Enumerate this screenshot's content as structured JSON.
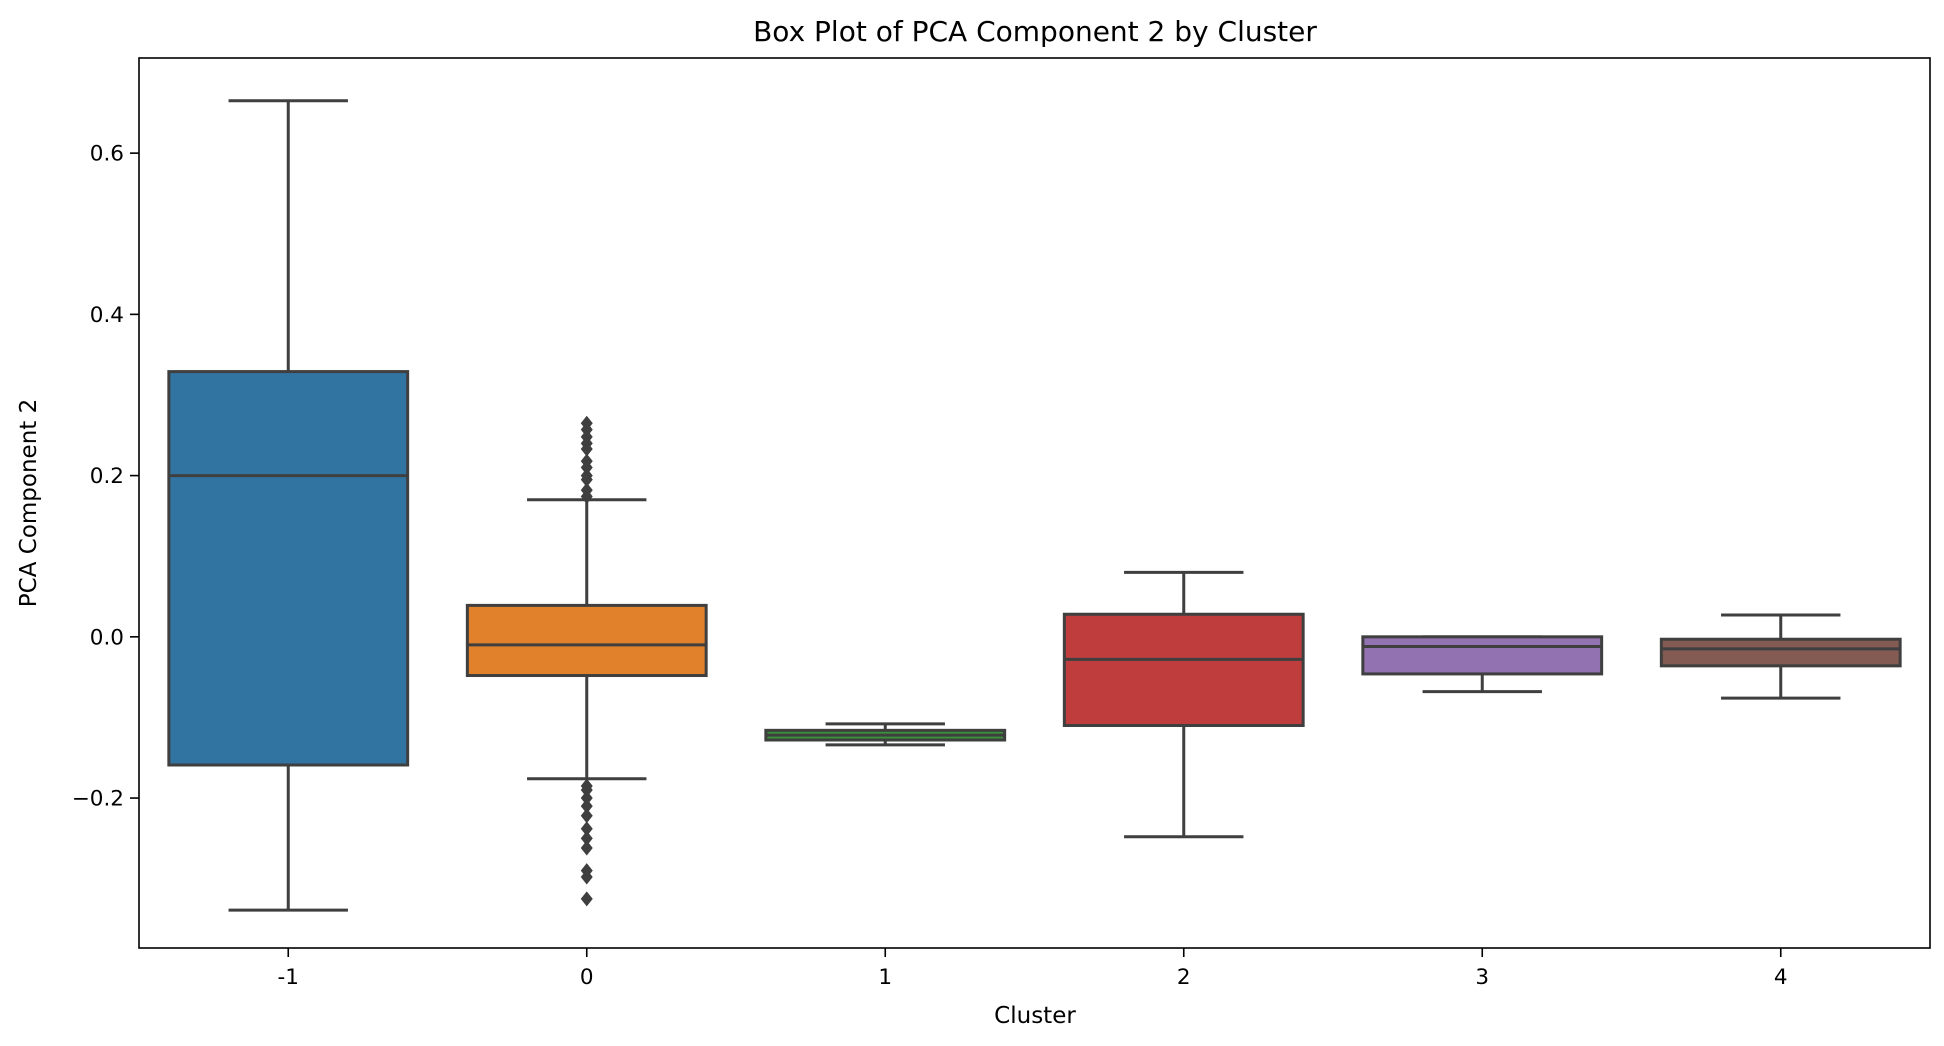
{
  "chart_data": {
    "type": "box",
    "title": "Box Plot of PCA Component 2 by Cluster",
    "xlabel": "Cluster",
    "ylabel": "PCA Component 2",
    "ylim": [
      -0.386,
      0.718
    ],
    "yticks": [
      -0.2,
      0.0,
      0.2,
      0.4,
      0.6
    ],
    "ytick_labels": [
      "−0.2",
      "0.0",
      "0.2",
      "0.4",
      "0.6"
    ],
    "categories": [
      "-1",
      "0",
      "1",
      "2",
      "3",
      "4"
    ],
    "grid": false,
    "legend": "none",
    "boxes": [
      {
        "cluster": "-1",
        "color": "#3274a1",
        "whisker_low": -0.339,
        "q1": -0.159,
        "median": 0.2,
        "q3": 0.329,
        "whisker_high": 0.665,
        "outliers": []
      },
      {
        "cluster": "0",
        "color": "#e1812c",
        "whisker_low": -0.176,
        "q1": -0.048,
        "median": -0.01,
        "q3": 0.039,
        "whisker_high": 0.17,
        "outliers": [
          0.265,
          0.257,
          0.248,
          0.24,
          0.233,
          0.218,
          0.21,
          0.2,
          0.195,
          0.182,
          0.174,
          -0.185,
          -0.19,
          -0.2,
          -0.21,
          -0.222,
          -0.238,
          -0.25,
          -0.262,
          -0.29,
          -0.298,
          -0.325
        ]
      },
      {
        "cluster": "1",
        "color": "#3a923a",
        "whisker_low": -0.134,
        "q1": -0.128,
        "median": -0.122,
        "q3": -0.116,
        "whisker_high": -0.108,
        "outliers": []
      },
      {
        "cluster": "2",
        "color": "#c03d3e",
        "whisker_low": -0.248,
        "q1": -0.11,
        "median": -0.028,
        "q3": 0.028,
        "whisker_high": 0.08,
        "outliers": []
      },
      {
        "cluster": "3",
        "color": "#9372b2",
        "whisker_low": -0.068,
        "q1": -0.046,
        "median": -0.012,
        "q3": 0.0,
        "whisker_high": 0.0,
        "outliers": []
      },
      {
        "cluster": "4",
        "color": "#845b53",
        "whisker_low": -0.076,
        "q1": -0.036,
        "median": -0.015,
        "q3": -0.003,
        "whisker_high": 0.027,
        "outliers": []
      }
    ]
  }
}
